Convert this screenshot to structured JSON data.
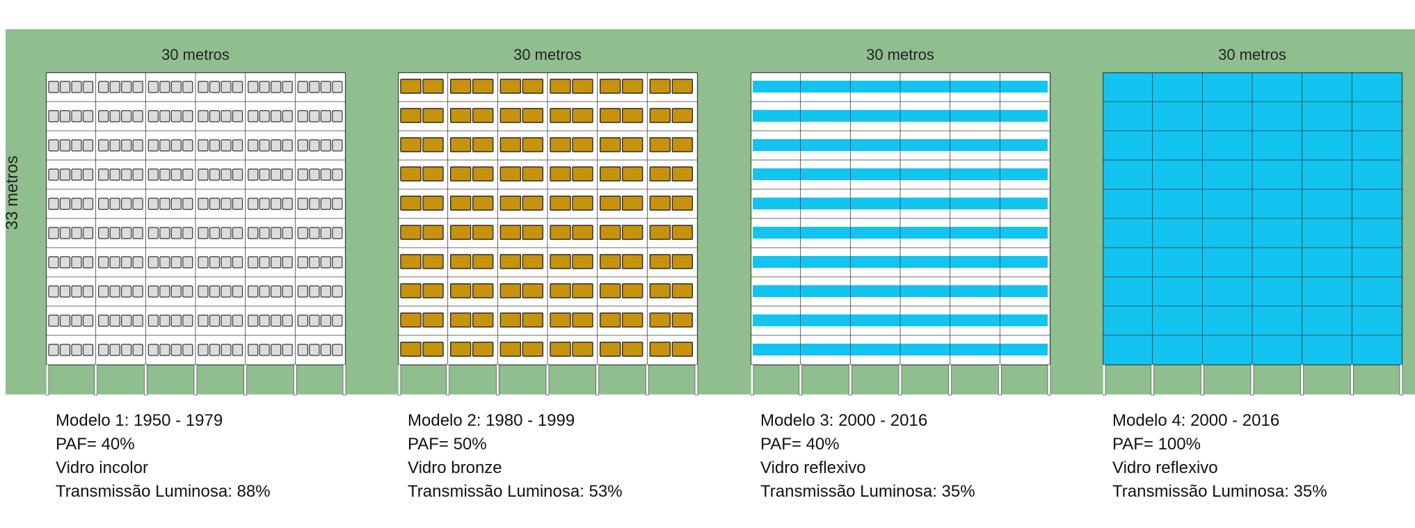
{
  "height_label": "33 metros",
  "colors": {
    "background_band": "#8fbf8f",
    "facade": "#ffffff",
    "frame": "#3a3a3a",
    "clear_glass": "#dcdcdc",
    "bronze_glass": "#c8930c",
    "reflective_glass": "#12c4ef"
  },
  "models": [
    {
      "width_label": "30 metros",
      "style": "clear",
      "title": "Modelo 1: 1950 - 1979",
      "paf": "PAF= 40%",
      "glass": "Vidro incolor",
      "transmission": "Transmissão Luminosa: 88%"
    },
    {
      "width_label": "30 metros",
      "style": "bronze",
      "title": "Modelo 2: 1980 - 1999",
      "paf": "PAF= 50%",
      "glass": "Vidro bronze",
      "transmission": "Transmissão Luminosa: 53%"
    },
    {
      "width_label": "30 metros",
      "style": "bands",
      "title": "Modelo 3: 2000 - 2016",
      "paf": "PAF= 40%",
      "glass": "Vidro reflexivo",
      "transmission": "Transmissão Luminosa: 35%"
    },
    {
      "width_label": "30 metros",
      "style": "curtain",
      "title": "Modelo 4: 2000 - 2016",
      "paf": "PAF= 100%",
      "glass": "Vidro reflexivo",
      "transmission": "Transmissão Luminosa: 35%"
    }
  ]
}
